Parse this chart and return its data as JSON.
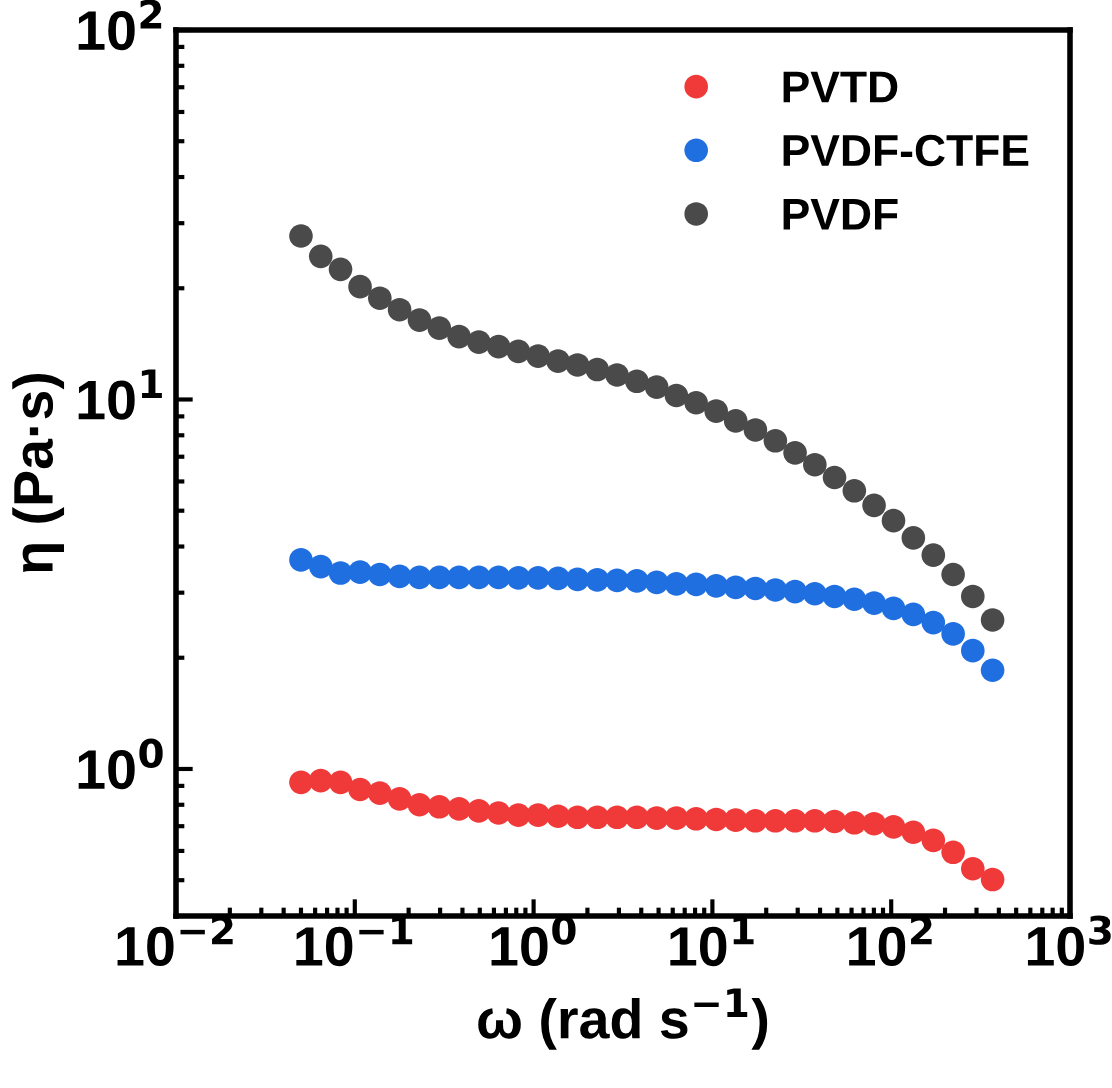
{
  "chart_data": {
    "type": "scatter",
    "xlabel": "ω (rad s$^{−1}$)",
    "ylabel": "η (Pa·s)",
    "x": [
      0.05,
      0.0645,
      0.0832,
      0.107,
      0.138,
      0.178,
      0.23,
      0.297,
      0.383,
      0.494,
      0.637,
      0.822,
      1.06,
      1.37,
      1.76,
      2.27,
      2.93,
      3.78,
      4.88,
      6.29,
      8.11,
      10.5,
      13.5,
      17.4,
      22.5,
      29,
      37.4,
      48.2,
      62.2,
      80.2,
      103,
      133,
      172,
      222,
      286,
      369
    ],
    "series": [
      {
        "name": "PVTD",
        "color": "#f03a3a",
        "values": [
          0.92,
          0.93,
          0.92,
          0.88,
          0.86,
          0.83,
          0.8,
          0.79,
          0.78,
          0.77,
          0.76,
          0.75,
          0.75,
          0.745,
          0.74,
          0.74,
          0.74,
          0.74,
          0.736,
          0.736,
          0.733,
          0.73,
          0.727,
          0.724,
          0.724,
          0.724,
          0.724,
          0.721,
          0.715,
          0.711,
          0.697,
          0.674,
          0.641,
          0.595,
          0.537,
          0.502
        ]
      },
      {
        "name": "PVDF-CTFE",
        "color": "#1f6fe0",
        "values": [
          3.68,
          3.53,
          3.39,
          3.41,
          3.36,
          3.32,
          3.3,
          3.3,
          3.3,
          3.3,
          3.3,
          3.29,
          3.29,
          3.28,
          3.26,
          3.25,
          3.24,
          3.23,
          3.2,
          3.17,
          3.16,
          3.13,
          3.1,
          3.08,
          3.05,
          3.02,
          2.98,
          2.93,
          2.88,
          2.81,
          2.72,
          2.62,
          2.49,
          2.32,
          2.09,
          1.85
        ]
      },
      {
        "name": "PVDF",
        "color": "#4a4a4a",
        "values": [
          27.7,
          24.4,
          22.5,
          20.2,
          18.8,
          17.5,
          16.4,
          15.6,
          14.8,
          14.3,
          13.9,
          13.5,
          13.1,
          12.7,
          12.4,
          12.05,
          11.65,
          11.2,
          10.8,
          10.25,
          9.8,
          9.3,
          8.75,
          8.27,
          7.73,
          7.17,
          6.66,
          6.15,
          5.66,
          5.17,
          4.7,
          4.22,
          3.79,
          3.36,
          2.93,
          2.53
        ]
      }
    ],
    "log": "xy",
    "xlim": [
      0.01,
      1000
    ],
    "ylim": [
      0.4,
      100
    ],
    "xticks": [
      {
        "value": 0.01,
        "label": "10$^{−2}$"
      },
      {
        "value": 0.1,
        "label": "10$^{−1}$"
      },
      {
        "value": 1,
        "label": "10$^{0}$"
      },
      {
        "value": 10,
        "label": "10$^{1}$"
      },
      {
        "value": 100,
        "label": "10$^{2}$"
      },
      {
        "value": 1000,
        "label": "10$^{3}$"
      }
    ],
    "yticks": [
      {
        "value": 1,
        "label": "10$^{0}$"
      },
      {
        "value": 10,
        "label": "10$^{1}$"
      },
      {
        "value": 100,
        "label": "10$^{2}$"
      }
    ],
    "marker": "circle",
    "legend": "top right",
    "grid": false
  }
}
